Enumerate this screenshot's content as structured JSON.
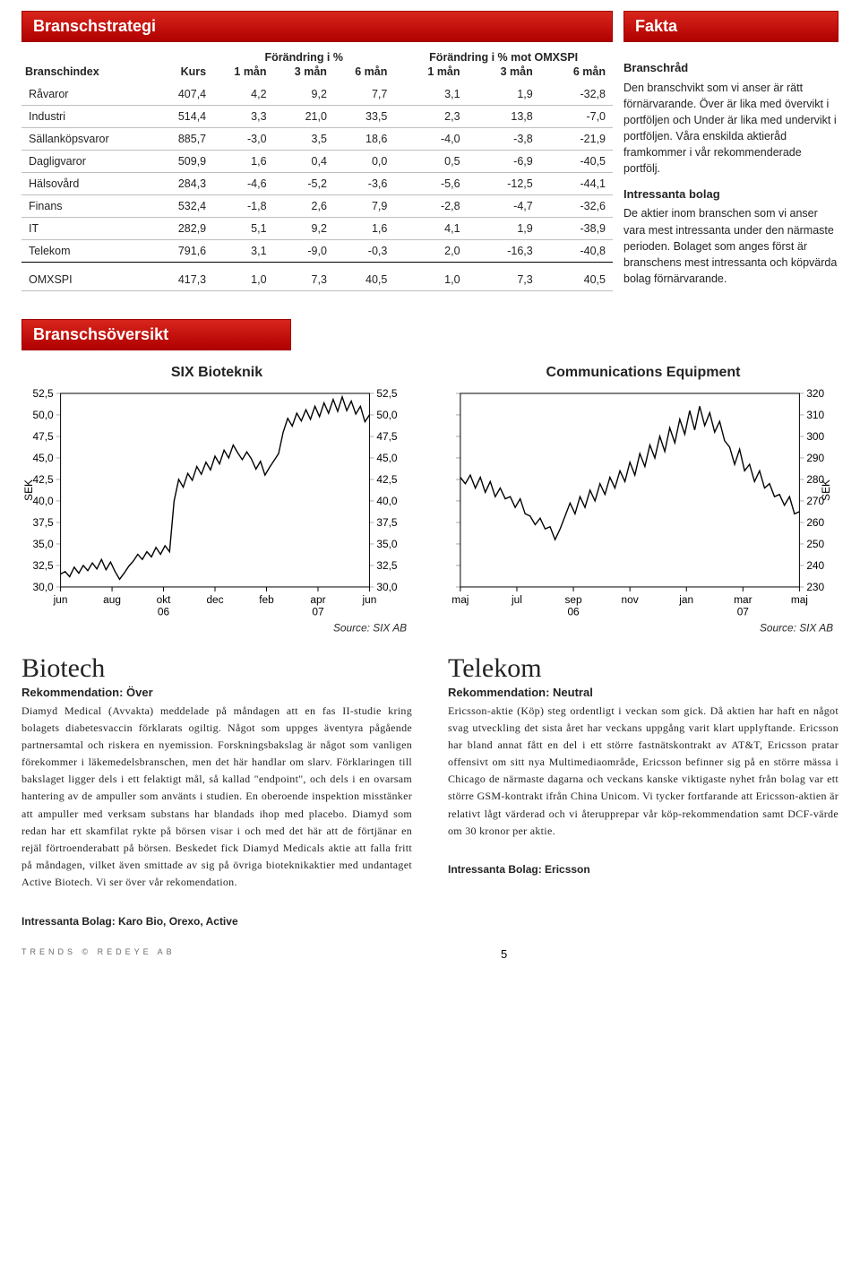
{
  "headers": {
    "branschstrategi": "Branschstrategi",
    "fakta": "Fakta",
    "branschoversikt": "Branschsöversikt"
  },
  "table": {
    "col_branschindex": "Branschindex",
    "col_kurs": "Kurs",
    "group_forandring": "Förändring i %",
    "group_forandring_omx": "Förändring i % mot OMXSPI",
    "col_1man": "1 mån",
    "col_3man": "3 mån",
    "col_6man": "6 mån",
    "rows": [
      {
        "name": "Råvaror",
        "kurs": "407,4",
        "a": "4,2",
        "b": "9,2",
        "c": "7,7",
        "d": "3,1",
        "e": "1,9",
        "f": "-32,8"
      },
      {
        "name": "Industri",
        "kurs": "514,4",
        "a": "3,3",
        "b": "21,0",
        "c": "33,5",
        "d": "2,3",
        "e": "13,8",
        "f": "-7,0"
      },
      {
        "name": "Sällanköpsvaror",
        "kurs": "885,7",
        "a": "-3,0",
        "b": "3,5",
        "c": "18,6",
        "d": "-4,0",
        "e": "-3,8",
        "f": "-21,9"
      },
      {
        "name": "Dagligvaror",
        "kurs": "509,9",
        "a": "1,6",
        "b": "0,4",
        "c": "0,0",
        "d": "0,5",
        "e": "-6,9",
        "f": "-40,5"
      },
      {
        "name": "Hälsovård",
        "kurs": "284,3",
        "a": "-4,6",
        "b": "-5,2",
        "c": "-3,6",
        "d": "-5,6",
        "e": "-12,5",
        "f": "-44,1"
      },
      {
        "name": "Finans",
        "kurs": "532,4",
        "a": "-1,8",
        "b": "2,6",
        "c": "7,9",
        "d": "-2,8",
        "e": "-4,7",
        "f": "-32,6"
      },
      {
        "name": "IT",
        "kurs": "282,9",
        "a": "5,1",
        "b": "9,2",
        "c": "1,6",
        "d": "4,1",
        "e": "1,9",
        "f": "-38,9"
      },
      {
        "name": "Telekom",
        "kurs": "791,6",
        "a": "3,1",
        "b": "-9,0",
        "c": "-0,3",
        "d": "2,0",
        "e": "-16,3",
        "f": "-40,8"
      }
    ],
    "summary": {
      "name": "OMXSPI",
      "kurs": "417,3",
      "a": "1,0",
      "b": "7,3",
      "c": "40,5",
      "d": "1,0",
      "e": "7,3",
      "f": "40,5"
    }
  },
  "fakta": {
    "h1": "Branschråd",
    "p1": "Den branschvikt som vi anser är rätt förnärvarande. Över är lika med övervikt i portföljen och Under är lika med undervikt i portföljen. Våra enskilda aktieråd framkommer i vår rekommenderade portfölj.",
    "h2": "Intressanta bolag",
    "p2": "De aktier inom branschen som vi anser vara mest intressanta under den närmaste perioden. Bolaget som anges först är branschens mest intressanta och köpvärda bolag förnärvarande."
  },
  "charts": {
    "source_label": "Source: SIX AB",
    "axis_label_sek": "SEK",
    "line_color": "#000000",
    "grid_color": "#a8a8a8",
    "text_color": "#000000",
    "italic_color": "#2a2a2a",
    "bioteknik": {
      "title": "SIX Bioteknik",
      "ymin": 30.0,
      "ymax": 52.5,
      "ystep": 2.5,
      "yticks": [
        "52,5",
        "50,0",
        "47,5",
        "45,0",
        "42,5",
        "40,0",
        "37,5",
        "35,0",
        "32,5",
        "30,0"
      ],
      "xticks_top": [
        "jun",
        "aug",
        "okt",
        "dec",
        "feb",
        "apr",
        "jun"
      ],
      "xticks_bot": [
        "06",
        "07"
      ],
      "xtick_bot_pos": [
        2,
        5
      ],
      "data": [
        31.5,
        31.8,
        31.2,
        32.3,
        31.6,
        32.5,
        31.9,
        32.8,
        32.1,
        33.2,
        32.0,
        32.9,
        31.8,
        30.9,
        31.6,
        32.4,
        33.0,
        33.8,
        33.2,
        34.1,
        33.5,
        34.6,
        33.8,
        34.8,
        34.1,
        40.0,
        42.5,
        41.6,
        43.2,
        42.4,
        44.0,
        43.1,
        44.5,
        43.6,
        45.2,
        44.3,
        45.9,
        45.0,
        46.5,
        45.6,
        44.8,
        45.7,
        44.9,
        43.7,
        44.6,
        43.0,
        43.9,
        44.7,
        45.5,
        48.0,
        49.6,
        48.7,
        50.2,
        49.3,
        50.6,
        49.5,
        51.0,
        49.8,
        51.4,
        50.2,
        51.8,
        50.4,
        52.1,
        50.5,
        51.6,
        50.1,
        51.0,
        49.2,
        50.0
      ]
    },
    "telekom": {
      "title": "Communications Equipment",
      "ymin": 230,
      "ymax": 320,
      "ystep": 10,
      "yticks": [
        "320",
        "310",
        "300",
        "290",
        "280",
        "270",
        "260",
        "250",
        "240",
        "230"
      ],
      "xticks_top": [
        "maj",
        "jul",
        "sep",
        "nov",
        "jan",
        "mar",
        "maj"
      ],
      "xticks_bot": [
        "06",
        "07"
      ],
      "xtick_bot_pos": [
        2,
        5
      ],
      "data": [
        281,
        278,
        282,
        276,
        281,
        274,
        279,
        272,
        276,
        271,
        272,
        267,
        271,
        264,
        263,
        259,
        262,
        257,
        258,
        252,
        257,
        263,
        269,
        264,
        272,
        267,
        275,
        270,
        278,
        273,
        281,
        276,
        284,
        279,
        288,
        282,
        292,
        286,
        296,
        290,
        300,
        293,
        304,
        297,
        308,
        301,
        312,
        303,
        314,
        305,
        311,
        302,
        307,
        298,
        295,
        287,
        294,
        284,
        287,
        279,
        284,
        276,
        278,
        272,
        273,
        268,
        272,
        264,
        265
      ]
    }
  },
  "articles": {
    "biotech": {
      "title": "Biotech",
      "rek_label": "Rekommendation:",
      "rek_value": "Över",
      "body": "Diamyd Medical (Avvakta) meddelade på måndagen att en fas II-studie kring bolagets diabetesvaccin förklarats ogiltig. Något som uppges äventyra pågående partnersamtal och riskera en nyemission. Forskningsbakslag är något som vanligen förekommer i läkemedelsbranschen, men det här handlar om slarv. Förklaringen till bakslaget ligger dels i ett felaktigt mål, så kallad \"endpoint\", och dels i en ovarsam hantering av de ampuller som använts i studien. En oberoende inspektion misstänker att ampuller med verksam substans har blandads ihop med placebo. Diamyd som redan har ett skamfilat rykte på börsen visar i och med det här att de förtjänar en rejäl förtroenderabatt på börsen. Beskedet fick Diamyd Medicals aktie att falla fritt på måndagen, vilket även smittade av sig på övriga bioteknikaktier med undantaget Active Biotech. Vi ser över vår rekomendation.",
      "intbolag": "Intressanta Bolag: Karo Bio, Orexo, Active"
    },
    "telekom": {
      "title": "Telekom",
      "rek_label": "Rekommendation:",
      "rek_value": "Neutral",
      "body": "Ericsson-aktie (Köp) steg ordentligt i veckan som gick. Då aktien har haft en något svag utveckling det sista året har veckans uppgång varit klart upplyftande. Ericsson har bland annat fått en del i ett större fastnätskontrakt av AT&T, Ericsson pratar offensivt om sitt nya Multimediaområde, Ericsson befinner sig på en större mässa i Chicago de närmaste dagarna och veckans kanske viktigaste nyhet från bolag var ett större GSM-kontrakt ifrån China Unicom. Vi tycker fortfarande att Ericsson-aktien är relativt lågt värderad och vi återupprepar vår köp-rekommendation samt DCF-värde om 30 kronor per aktie.",
      "intbolag": "Intressanta Bolag: Ericsson"
    }
  },
  "footer": {
    "left": "TRENDS © REDEYE AB",
    "page": "5"
  }
}
